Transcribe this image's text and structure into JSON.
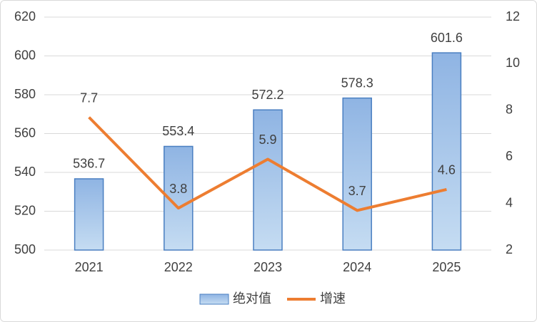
{
  "chart_data": {
    "type": "bar",
    "categories": [
      "2021",
      "2022",
      "2023",
      "2024",
      "2025"
    ],
    "series": [
      {
        "name": "绝对值",
        "type": "bar",
        "color": "#9dc3e6",
        "values": [
          536.7,
          553.4,
          572.2,
          578.3,
          601.6
        ]
      },
      {
        "name": "增速",
        "type": "line",
        "axis": "y2",
        "color": "#ed7d31",
        "values": [
          7.7,
          3.8,
          5.9,
          3.7,
          4.6
        ]
      }
    ],
    "ylim": [
      500,
      620
    ],
    "yticks": [
      500,
      520,
      540,
      560,
      580,
      600,
      620
    ],
    "y2lim": [
      2,
      12
    ],
    "y2ticks": [
      2,
      4,
      6,
      8,
      10,
      12
    ],
    "grid": true,
    "legend": "bottom"
  }
}
